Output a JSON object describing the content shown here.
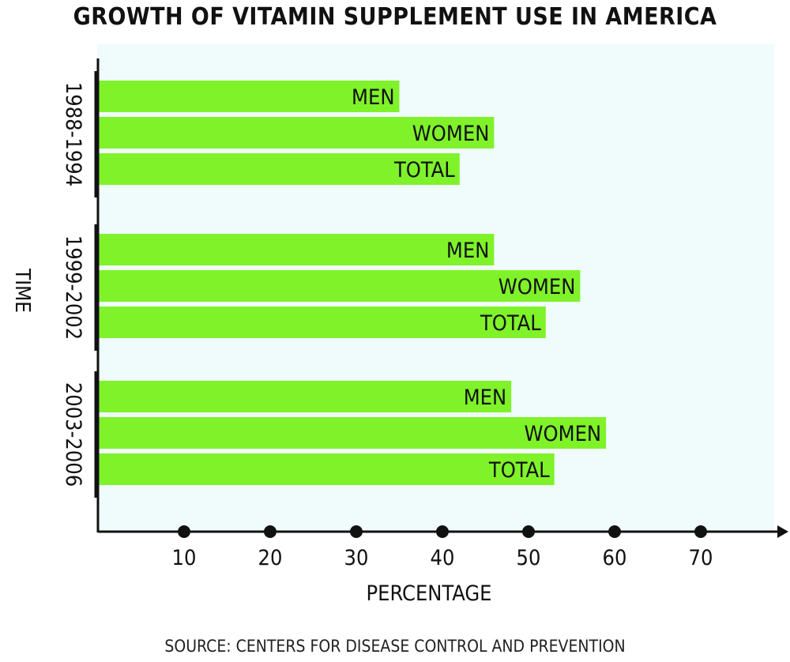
{
  "title": "GROWTH OF VITAMIN SUPPLEMENT USE IN AMERICA",
  "source": "SOURCE: CENTERS FOR DISEASE CONTROL AND PREVENTION",
  "colors": {
    "bar": "#7ff22a",
    "plot_bg": "#effcfb",
    "axis": "#111111"
  },
  "chart_data": {
    "type": "bar",
    "orientation": "horizontal",
    "title": "GROWTH OF VITAMIN SUPPLEMENT USE IN AMERICA",
    "xlabel": "PERCENTAGE",
    "ylabel": "TIME",
    "xticks": [
      10,
      20,
      30,
      40,
      50,
      60,
      70
    ],
    "xtick_labels": [
      "10",
      "20",
      "30",
      "40",
      "50",
      "60",
      "70"
    ],
    "grid": false,
    "groups": [
      {
        "label": "1988-1994",
        "bars": [
          {
            "label": "MEN",
            "value": 35
          },
          {
            "label": "WOMEN",
            "value": 46
          },
          {
            "label": "TOTAL",
            "value": 42
          }
        ]
      },
      {
        "label": "1999-2002",
        "bars": [
          {
            "label": "MEN",
            "value": 46
          },
          {
            "label": "WOMEN",
            "value": 56
          },
          {
            "label": "TOTAL",
            "value": 52
          }
        ]
      },
      {
        "label": "2003-2006",
        "bars": [
          {
            "label": "MEN",
            "value": 48
          },
          {
            "label": "WOMEN",
            "value": 59
          },
          {
            "label": "TOTAL",
            "value": 53
          }
        ]
      }
    ]
  }
}
